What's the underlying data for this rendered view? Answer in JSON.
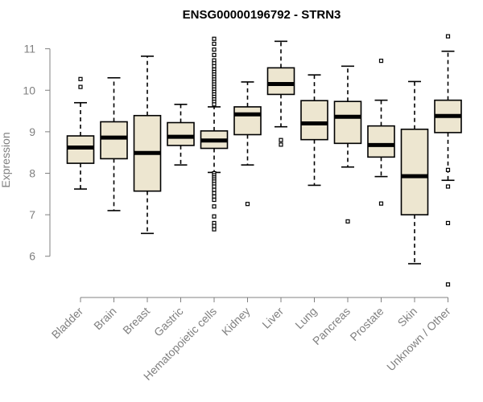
{
  "chart_data": {
    "type": "boxplot",
    "title": "ENSG00000196792 - STRN3",
    "xlabel": "",
    "ylabel": "Expression",
    "ylim": [
      5.2,
      11.4
    ],
    "yticks": [
      6,
      7,
      8,
      9,
      10,
      11
    ],
    "colors": {
      "box_fill": "#ede6d0",
      "stroke": "#000000",
      "axis": "#808080",
      "label": "#808080"
    },
    "categories": [
      "Bladder",
      "Brain",
      "Breast",
      "Gastric",
      "Hematopoietic cells",
      "Kidney",
      "Liver",
      "Lung",
      "Pancreas",
      "Prostate",
      "Skin",
      "Unknown / Other"
    ],
    "boxes": [
      {
        "name": "Bladder",
        "whisker_low": 7.62,
        "q1": 8.24,
        "median": 8.62,
        "q3": 8.9,
        "whisker_high": 9.7,
        "outliers": [
          10.08,
          10.27
        ]
      },
      {
        "name": "Brain",
        "whisker_low": 7.1,
        "q1": 8.35,
        "median": 8.86,
        "q3": 9.24,
        "whisker_high": 10.3,
        "outliers": []
      },
      {
        "name": "Breast",
        "whisker_low": 6.55,
        "q1": 7.57,
        "median": 8.49,
        "q3": 9.39,
        "whisker_high": 10.82,
        "outliers": []
      },
      {
        "name": "Gastric",
        "whisker_low": 8.2,
        "q1": 8.67,
        "median": 8.88,
        "q3": 9.22,
        "whisker_high": 9.66,
        "outliers": []
      },
      {
        "name": "Hematopoietic cells",
        "whisker_low": 8.02,
        "q1": 8.6,
        "median": 8.79,
        "q3": 9.02,
        "whisker_high": 9.6,
        "outliers": [
          11.24,
          11.12,
          10.98,
          10.85,
          10.72,
          10.65,
          10.58,
          10.5,
          10.44,
          10.38,
          10.32,
          10.26,
          10.2,
          10.14,
          10.08,
          10.02,
          9.96,
          9.9,
          9.84,
          9.78,
          9.72,
          9.66,
          8.0,
          7.95,
          7.9,
          7.85,
          7.8,
          7.74,
          7.68,
          7.6,
          7.52,
          7.44,
          7.36,
          7.2,
          6.96,
          6.8,
          6.73,
          6.65
        ]
      },
      {
        "name": "Kidney",
        "whisker_low": 8.2,
        "q1": 8.93,
        "median": 9.42,
        "q3": 9.6,
        "whisker_high": 10.2,
        "outliers": [
          7.26
        ]
      },
      {
        "name": "Liver",
        "whisker_low": 9.12,
        "q1": 9.9,
        "median": 10.15,
        "q3": 10.54,
        "whisker_high": 11.18,
        "outliers": [
          8.8,
          8.69
        ]
      },
      {
        "name": "Lung",
        "whisker_low": 7.71,
        "q1": 8.81,
        "median": 9.2,
        "q3": 9.75,
        "whisker_high": 10.37,
        "outliers": []
      },
      {
        "name": "Pancreas",
        "whisker_low": 8.15,
        "q1": 8.72,
        "median": 9.36,
        "q3": 9.73,
        "whisker_high": 10.58,
        "outliers": [
          6.84
        ]
      },
      {
        "name": "Prostate",
        "whisker_low": 7.92,
        "q1": 8.39,
        "median": 8.68,
        "q3": 9.14,
        "whisker_high": 9.76,
        "outliers": [
          10.71,
          7.27
        ]
      },
      {
        "name": "Skin",
        "whisker_low": 5.82,
        "q1": 7.0,
        "median": 7.93,
        "q3": 9.06,
        "whisker_high": 10.21,
        "outliers": []
      },
      {
        "name": "Unknown / Other",
        "whisker_low": 7.83,
        "q1": 8.98,
        "median": 9.38,
        "q3": 9.76,
        "whisker_high": 10.94,
        "outliers": [
          11.3,
          8.08,
          7.68,
          6.8,
          5.32
        ]
      }
    ]
  }
}
